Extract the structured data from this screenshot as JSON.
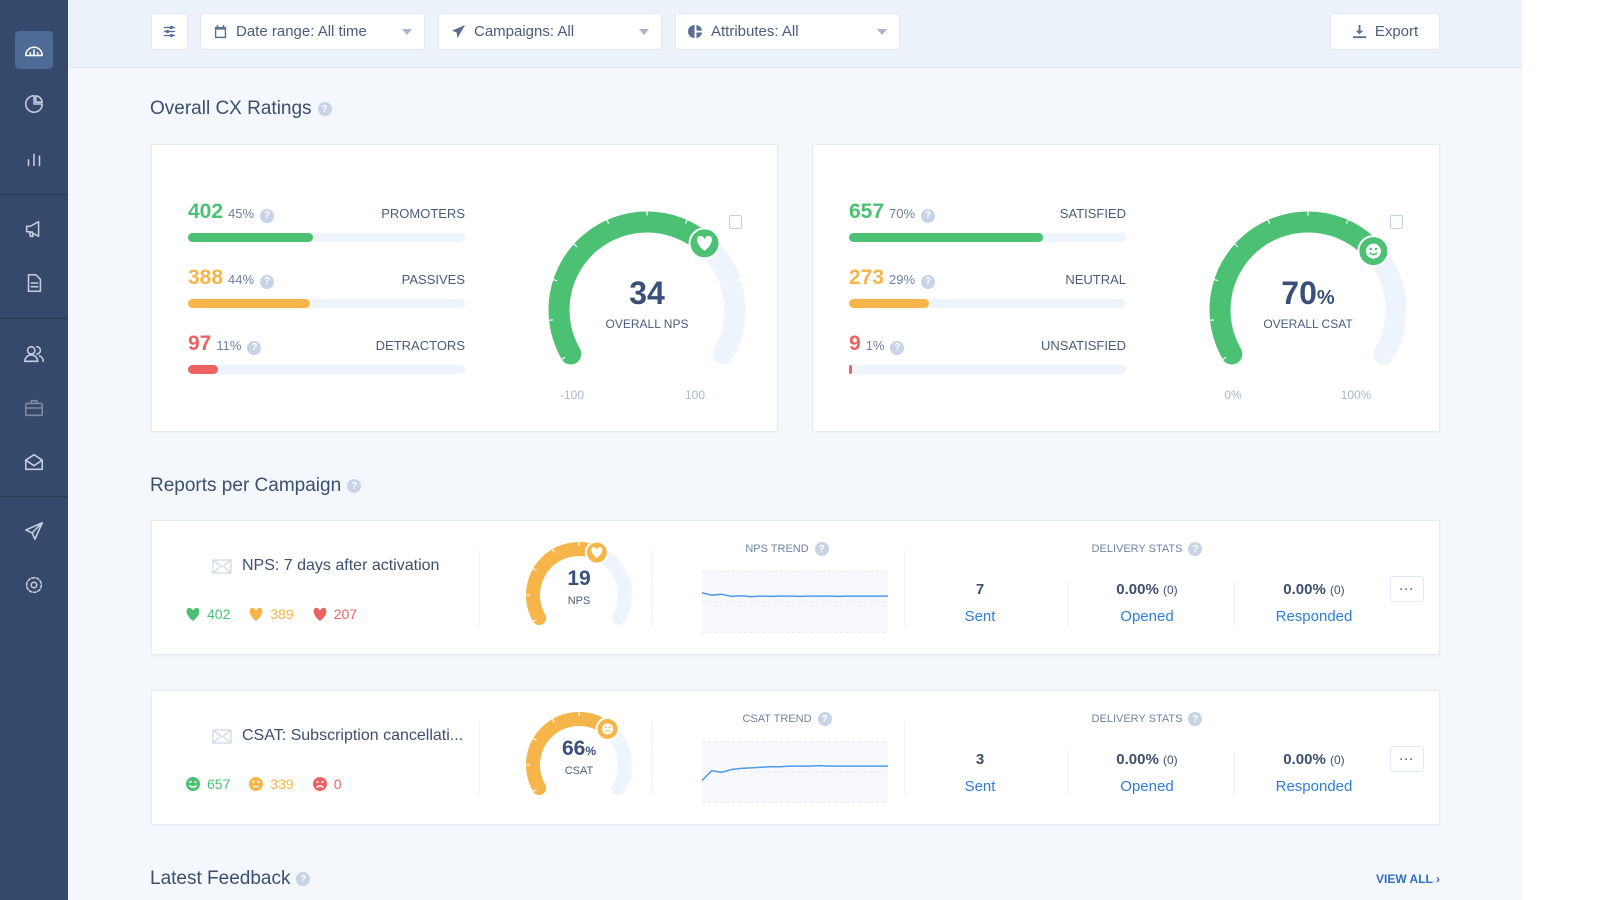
{
  "colors": {
    "sidebar": "#34496c",
    "green": "#4cc073",
    "orange": "#f5b549",
    "red": "#ea6361",
    "navy": "#3b5078",
    "link": "#2f7fd6",
    "track": "#eef4fc"
  },
  "sidebar": {
    "items": [
      {
        "icon": "dashboard-icon",
        "active": true
      },
      {
        "icon": "pie-chart-icon"
      },
      {
        "icon": "bar-chart-icon"
      },
      {
        "icon": "megaphone-icon"
      },
      {
        "icon": "document-icon"
      },
      {
        "icon": "users-icon"
      },
      {
        "icon": "briefcase-icon"
      },
      {
        "icon": "inbox-icon"
      },
      {
        "icon": "send-icon"
      },
      {
        "icon": "settings-icon"
      }
    ]
  },
  "toolbar": {
    "date_range": "Date range: All time",
    "campaigns": "Campaigns: All",
    "attributes": "Attributes: All",
    "export": "Export"
  },
  "overall": {
    "title": "Overall CX Ratings",
    "nps": {
      "rows": [
        {
          "count": "402",
          "pct": "45%",
          "label": "PROMOTERS",
          "fill": 45,
          "color": "#4cc073"
        },
        {
          "count": "388",
          "pct": "44%",
          "label": "PASSIVES",
          "fill": 44,
          "color": "#f5b549"
        },
        {
          "count": "97",
          "pct": "11%",
          "label": "DETRACTORS",
          "fill": 11,
          "color": "#ea6361"
        }
      ],
      "value": "34",
      "label": "OVERALL NPS",
      "min_label": "-100",
      "max_label": "100",
      "fraction": 0.67
    },
    "csat": {
      "rows": [
        {
          "count": "657",
          "pct": "70%",
          "label": "SATISFIED",
          "fill": 70,
          "color": "#4cc073"
        },
        {
          "count": "273",
          "pct": "29%",
          "label": "NEUTRAL",
          "fill": 29,
          "color": "#f5b549"
        },
        {
          "count": "9",
          "pct": "1%",
          "label": "UNSATISFIED",
          "fill": 1,
          "color": "#ea6361"
        }
      ],
      "value": "70",
      "unit": "%",
      "label": "OVERALL CSAT",
      "min_label": "0%",
      "max_label": "100%",
      "fraction": 0.7
    }
  },
  "reports": {
    "title": "Reports per Campaign",
    "campaigns": [
      {
        "name": "NPS: 7 days after activation",
        "counts": [
          "402",
          "389",
          "207"
        ],
        "kind": "nps",
        "score": "19",
        "unit": "",
        "score_label": "NPS",
        "fraction": 0.595,
        "trend_title": "NPS TREND",
        "trend": [
          30,
          22,
          25,
          18,
          20,
          17,
          19,
          18,
          19,
          19,
          18,
          19,
          19,
          19,
          18,
          19,
          19,
          19,
          19,
          19
        ],
        "delivery_title": "DELIVERY STATS",
        "sent": "7",
        "sent_label": "Sent",
        "opened": "0.00%",
        "opened_n": "(0)",
        "opened_label": "Opened",
        "responded": "0.00%",
        "responded_n": "(0)",
        "responded_label": "Responded"
      },
      {
        "name": "CSAT: Subscription cancellati...",
        "counts": [
          "657",
          "339",
          "0"
        ],
        "kind": "csat",
        "score": "66",
        "unit": "%",
        "score_label": "CSAT",
        "fraction": 0.66,
        "trend_title": "CSAT TREND",
        "trend": [
          40,
          58,
          55,
          60,
          62,
          63,
          64,
          65,
          65,
          66,
          66,
          66,
          67,
          66,
          66,
          66,
          66,
          66,
          66,
          66
        ],
        "delivery_title": "DELIVERY STATS",
        "sent": "3",
        "sent_label": "Sent",
        "opened": "0.00%",
        "opened_n": "(0)",
        "opened_label": "Opened",
        "responded": "0.00%",
        "responded_n": "(0)",
        "responded_label": "Responded"
      }
    ]
  },
  "feedback": {
    "title": "Latest Feedback",
    "view_all": "VIEW ALL ›"
  }
}
